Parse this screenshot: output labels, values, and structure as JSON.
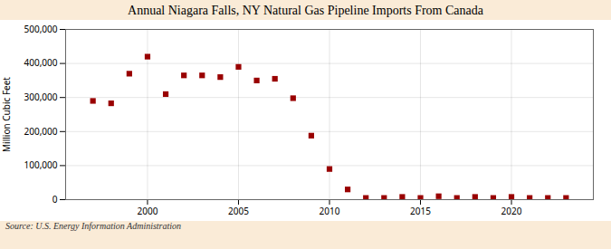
{
  "chart_data": {
    "type": "scatter",
    "title": "Annual Niagara Falls, NY Natural Gas Pipeline Imports From Canada",
    "ylabel": "Million Cubic Feet",
    "annotation": "Source: U.S. Energy Information Administration",
    "x": [
      1997,
      1998,
      1999,
      2000,
      2001,
      2002,
      2003,
      2004,
      2005,
      2006,
      2007,
      2008,
      2009,
      2010,
      2011,
      2012,
      2013,
      2014,
      2015,
      2016,
      2017,
      2018,
      2019,
      2020,
      2021,
      2022,
      2023
    ],
    "values": [
      290000,
      283000,
      370000,
      420000,
      310000,
      365000,
      365000,
      360000,
      390000,
      350000,
      355000,
      298000,
      188000,
      90000,
      30000,
      5000,
      5000,
      8000,
      5000,
      10000,
      5000,
      8000,
      5000,
      8000,
      5000,
      5000,
      5000
    ],
    "color": "#990000",
    "marker": "square",
    "xlim": [
      1995.5,
      2024.5
    ],
    "xticks": [
      2000,
      2005,
      2010,
      2015,
      2020
    ],
    "ylim": [
      0,
      500000
    ],
    "yticks": [
      0,
      {
        "value": 100000,
        "label": "100,000"
      },
      {
        "value": 200000,
        "label": "200,000"
      },
      {
        "value": 300000,
        "label": "300,000"
      },
      {
        "value": 400000,
        "label": "400,000"
      },
      {
        "value": 500000,
        "label": "500,000"
      }
    ],
    "grid": true
  }
}
